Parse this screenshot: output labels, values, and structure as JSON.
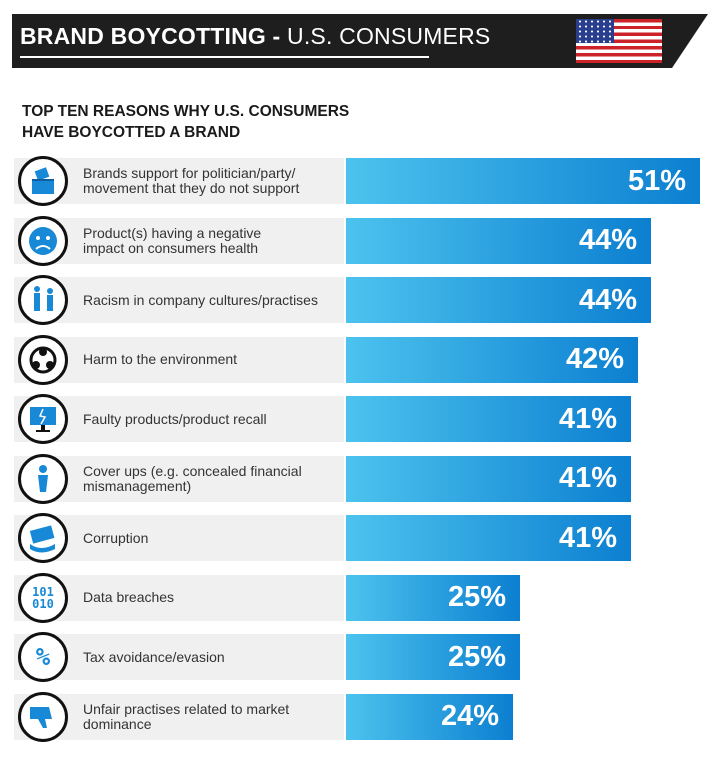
{
  "header": {
    "title_bold": "BRAND BOYCOTTING -",
    "title_light": "U.S. CONSUMERS"
  },
  "subtitle": {
    "line1": "TOP TEN REASONS WHY U.S. CONSUMERS",
    "line2": "HAVE BOYCOTTED A BRAND"
  },
  "colors": {
    "bar_start": "#4cc3ee",
    "bar_end": "#0c7fd0",
    "header_bg": "#1e1e1e",
    "label_bg": "#f0f0f0"
  },
  "chart_data": {
    "type": "bar",
    "orientation": "horizontal",
    "title": "TOP TEN REASONS WHY U.S. CONSUMERS HAVE BOYCOTTED A BRAND",
    "categories": [
      [
        "Brands support for politician/party/",
        "movement that they do not support"
      ],
      [
        "Product(s) having a negative",
        "impact on consumers health"
      ],
      [
        "Racism in company cultures/practises"
      ],
      [
        "Harm to the environment"
      ],
      [
        "Faulty products/product recall"
      ],
      [
        "Cover ups (e.g. concealed financial",
        "mismanagement)"
      ],
      [
        "Corruption"
      ],
      [
        "Data breaches"
      ],
      [
        "Tax avoidance/evasion"
      ],
      [
        "Unfair practises related to market",
        "dominance"
      ]
    ],
    "icons": [
      "ballot-box-icon",
      "sad-face-icon",
      "people-icon",
      "biohazard-icon",
      "broken-monitor-icon",
      "person-icon",
      "bribe-money-icon",
      "binary-data-icon",
      "percent-icon",
      "thumbs-down-icon"
    ],
    "icon_texts": [
      "",
      "",
      "",
      "",
      "",
      "",
      "",
      "101\n010",
      "%",
      ""
    ],
    "values": [
      51,
      44,
      44,
      42,
      41,
      41,
      41,
      25,
      25,
      24
    ],
    "value_labels": [
      "51%",
      "44%",
      "44%",
      "42%",
      "41%",
      "41%",
      "41%",
      "25%",
      "25%",
      "24%"
    ],
    "xlim": [
      0,
      51
    ]
  }
}
